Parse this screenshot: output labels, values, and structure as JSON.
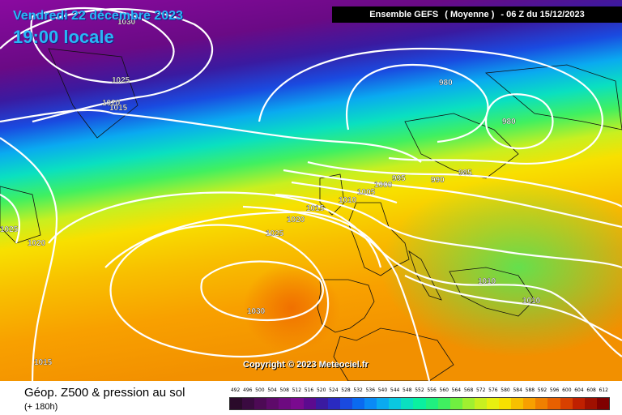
{
  "header": {
    "date": "Vendredi 22 décembre 2023",
    "time": "19:00 locale"
  },
  "model": {
    "name": "Ensemble GEFS",
    "member": "( Moyenne )",
    "run": "- 06 Z du 15/12/2023"
  },
  "copyright": "Copyright © 2023 Meteociel.fr",
  "footer": {
    "title": "Géop. Z500 & pression au sol",
    "subtitle": "(+ 180h)"
  },
  "isobars": [
    {
      "text": "1030"
    },
    {
      "text": "1025"
    },
    {
      "text": "1020"
    },
    {
      "text": "1015"
    },
    {
      "text": "980"
    },
    {
      "text": "980"
    },
    {
      "text": "985"
    },
    {
      "text": "990"
    },
    {
      "text": "995"
    },
    {
      "text": "1000"
    },
    {
      "text": "1005"
    },
    {
      "text": "1010"
    },
    {
      "text": "1015"
    },
    {
      "text": "1020"
    },
    {
      "text": "1025"
    },
    {
      "text": "1030"
    },
    {
      "text": "1025"
    },
    {
      "text": "1020"
    },
    {
      "text": "1015"
    },
    {
      "text": "1010"
    },
    {
      "text": "1010"
    }
  ],
  "scale": {
    "labels": [
      "492",
      "496",
      "500",
      "504",
      "508",
      "512",
      "516",
      "520",
      "524",
      "528",
      "532",
      "536",
      "540",
      "544",
      "548",
      "552",
      "556",
      "560",
      "564",
      "568",
      "572",
      "576",
      "580",
      "584",
      "588",
      "592",
      "596",
      "600",
      "604",
      "608",
      "612"
    ],
    "colors": [
      "#2a0a2a",
      "#3a0a40",
      "#4d0a55",
      "#5e0a6a",
      "#6d0a80",
      "#7a0a8f",
      "#5c0a8f",
      "#3a1aa0",
      "#2a2ac0",
      "#1a4ae0",
      "#0a6af0",
      "#0a8af5",
      "#0aaaf0",
      "#0ac8e0",
      "#0ae0c0",
      "#0af0a0",
      "#20f080",
      "#40f060",
      "#70f040",
      "#a0f030",
      "#c8f020",
      "#e8f010",
      "#f8e000",
      "#f8c000",
      "#f8a000",
      "#f08000",
      "#e86000",
      "#d84000",
      "#c02000",
      "#a01000",
      "#800000"
    ]
  }
}
